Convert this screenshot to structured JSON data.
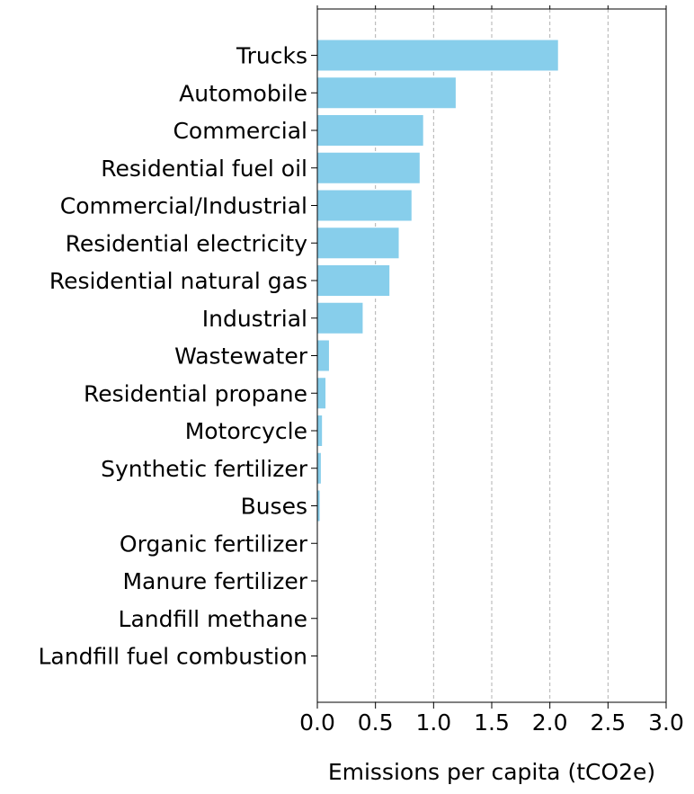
{
  "chart_data": {
    "type": "bar",
    "orientation": "horizontal",
    "categories": [
      "Trucks",
      "Automobile",
      "Commercial",
      "Residential fuel oil",
      "Commercial/Industrial",
      "Residential electricity",
      "Residential natural gas",
      "Industrial",
      "Wastewater",
      "Residential propane",
      "Motorcycle",
      "Synthetic fertilizer",
      "Buses",
      "Organic fertilizer",
      "Manure fertilizer",
      "Landfill methane",
      "Landfill fuel combustion"
    ],
    "values": [
      2.07,
      1.19,
      0.91,
      0.88,
      0.81,
      0.7,
      0.62,
      0.39,
      0.1,
      0.07,
      0.04,
      0.03,
      0.02,
      0.004,
      0.003,
      0.002,
      0.001
    ],
    "xlabel": "Emissions per capita (tCO2e)",
    "ylabel": "",
    "title": "",
    "xlim": [
      0,
      3.0
    ],
    "xticks": [
      "0.0",
      "0.5",
      "1.0",
      "1.5",
      "2.0",
      "2.5",
      "3.0"
    ],
    "grid": "x-axis, dashed",
    "legend": "none",
    "bar_color": "#87CEEB",
    "grid_color": "#b0b0b0"
  }
}
